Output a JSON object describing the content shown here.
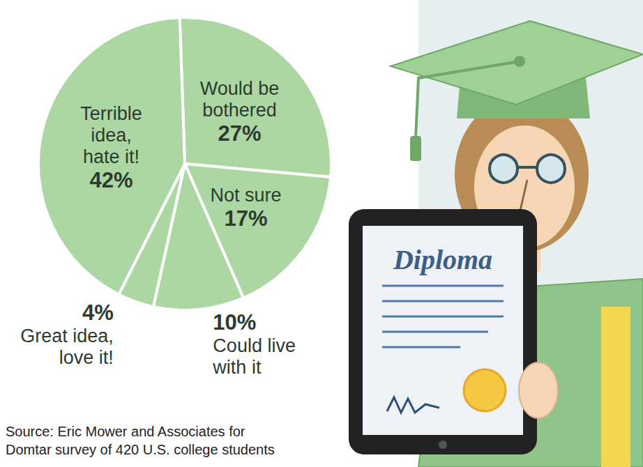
{
  "chart_data": {
    "type": "pie",
    "categories": [
      "Would be bothered",
      "Not sure",
      "Could live with it",
      "Great idea, love it!",
      "Terrible idea, hate it!"
    ],
    "values": [
      27,
      17,
      10,
      4,
      42
    ],
    "value_labels": [
      "27%",
      "17%",
      "10%",
      "4%",
      "42%"
    ],
    "color": "#acd7a3",
    "data_labels": true,
    "annotations": [
      "Diploma"
    ],
    "source": "Source: Eric Mower and Associates for Domtar survey of 420 U.S. college students"
  }
}
